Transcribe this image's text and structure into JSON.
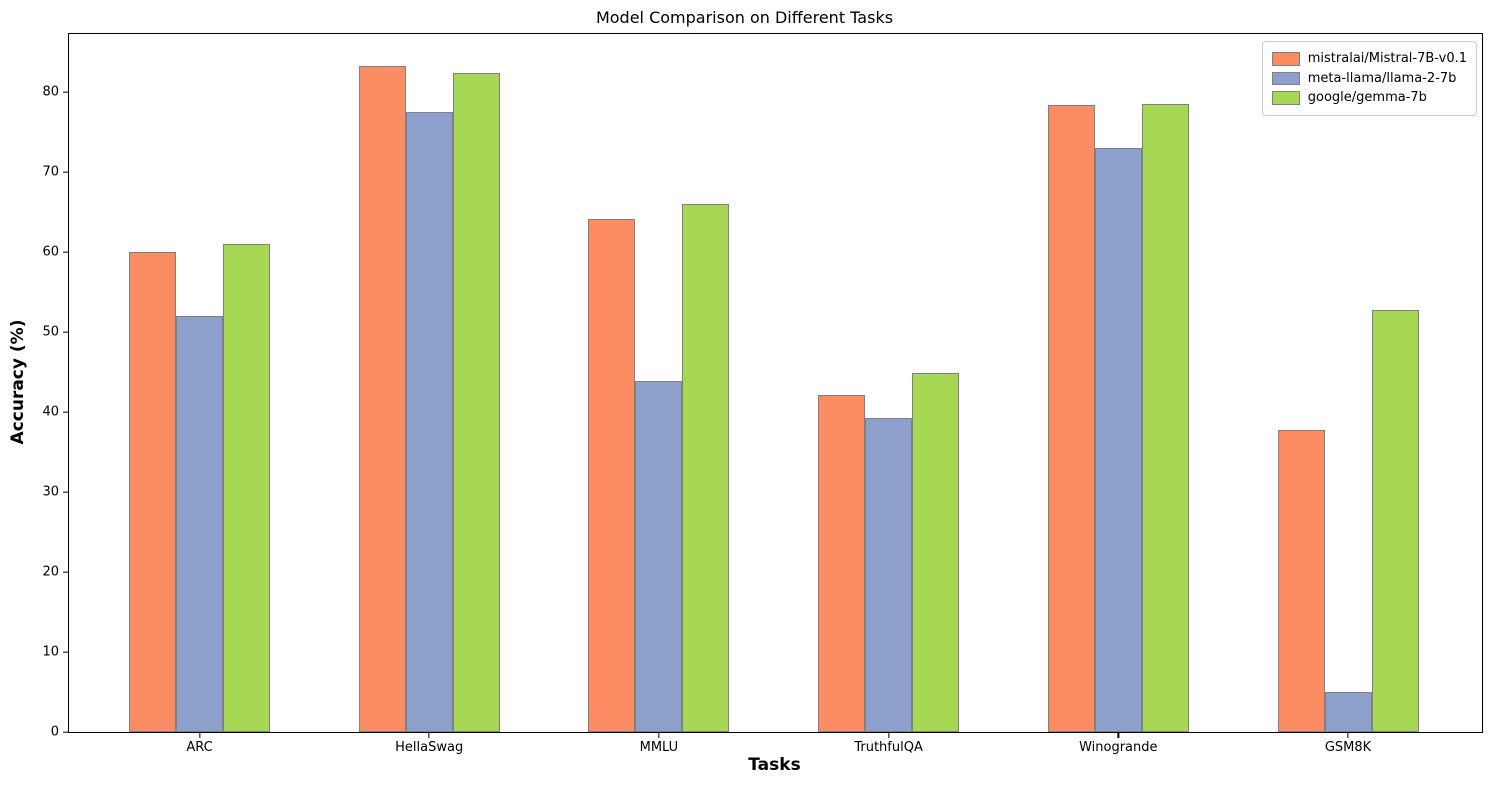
{
  "chart_data": {
    "type": "bar",
    "title": "Model Comparison on Different Tasks",
    "xlabel": "Tasks",
    "ylabel": "Accuracy (%)",
    "categories": [
      "ARC",
      "HellaSwag",
      "MMLU",
      "TruthfulQA",
      "Winogrande",
      "GSM8K"
    ],
    "series": [
      {
        "name": "mistralai/Mistral-7B-v0.1",
        "color": "#FC8D62",
        "values": [
          60.0,
          83.3,
          64.2,
          42.2,
          78.4,
          37.8
        ]
      },
      {
        "name": "meta-llama/llama-2-7b",
        "color": "#8DA0CB",
        "values": [
          52.0,
          77.6,
          43.9,
          39.3,
          73.0,
          5.0
        ]
      },
      {
        "name": "google/gemma-7b",
        "color": "#A6D854",
        "values": [
          61.0,
          82.4,
          66.0,
          44.9,
          78.5,
          52.8
        ]
      }
    ],
    "bar_edge_color": "#808080",
    "ylim": [
      0,
      87.3
    ],
    "yticks": [
      0,
      10,
      20,
      30,
      40,
      50,
      60,
      70,
      80
    ],
    "legend_position": "upper right",
    "grid": false,
    "background_color": "#ffffff",
    "text_color": "#000000"
  }
}
